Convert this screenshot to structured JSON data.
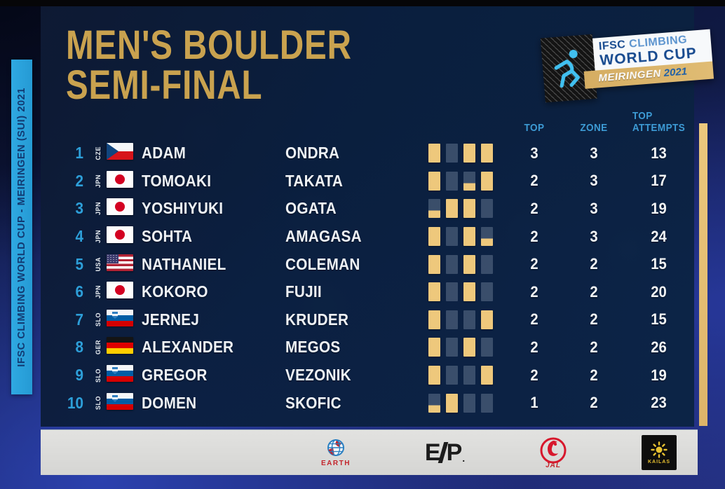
{
  "ribbon": {
    "text": "IFSC CLIMBING WORLD CUP - MEIRINGEN (SUI) 2021"
  },
  "title": {
    "line1": "MEN'S BOULDER",
    "line2": "SEMI-FINAL"
  },
  "event_badge": {
    "org": "IFSC",
    "discipline": "CLIMBING",
    "series": "WORLD CUP",
    "city": "MEIRINGEN",
    "year": "2021"
  },
  "table": {
    "headers": {
      "top": "TOP",
      "zone": "ZONE",
      "attempts_line1": "TOP",
      "attempts_line2": "ATTEMPTS"
    },
    "rows": [
      {
        "rank": "1",
        "country": "CZE",
        "flag": "cze",
        "first": "ADAM",
        "last": "ONDRA",
        "boulders": [
          "top",
          "none",
          "top",
          "top"
        ],
        "top": "3",
        "zone": "3",
        "attempts": "13"
      },
      {
        "rank": "2",
        "country": "JPN",
        "flag": "jpn",
        "first": "TOMOAKI",
        "last": "TAKATA",
        "boulders": [
          "top",
          "none",
          "zone",
          "top"
        ],
        "top": "2",
        "zone": "3",
        "attempts": "17"
      },
      {
        "rank": "3",
        "country": "JPN",
        "flag": "jpn",
        "first": "YOSHIYUKI",
        "last": "OGATA",
        "boulders": [
          "zone",
          "top",
          "top",
          "none"
        ],
        "top": "2",
        "zone": "3",
        "attempts": "19"
      },
      {
        "rank": "4",
        "country": "JPN",
        "flag": "jpn",
        "first": "SOHTA",
        "last": "AMAGASA",
        "boulders": [
          "top",
          "none",
          "top",
          "zone"
        ],
        "top": "2",
        "zone": "3",
        "attempts": "24"
      },
      {
        "rank": "5",
        "country": "USA",
        "flag": "usa",
        "first": "NATHANIEL",
        "last": "COLEMAN",
        "boulders": [
          "top",
          "none",
          "top",
          "none"
        ],
        "top": "2",
        "zone": "2",
        "attempts": "15"
      },
      {
        "rank": "6",
        "country": "JPN",
        "flag": "jpn",
        "first": "KOKORO",
        "last": "FUJII",
        "boulders": [
          "top",
          "none",
          "top",
          "none"
        ],
        "top": "2",
        "zone": "2",
        "attempts": "20"
      },
      {
        "rank": "7",
        "country": "SLO",
        "flag": "slo",
        "first": "JERNEJ",
        "last": "KRUDER",
        "boulders": [
          "top",
          "none",
          "none",
          "top"
        ],
        "top": "2",
        "zone": "2",
        "attempts": "15"
      },
      {
        "rank": "8",
        "country": "GER",
        "flag": "ger",
        "first": "ALEXANDER",
        "last": "MEGOS",
        "boulders": [
          "top",
          "none",
          "top",
          "none"
        ],
        "top": "2",
        "zone": "2",
        "attempts": "26"
      },
      {
        "rank": "9",
        "country": "SLO",
        "flag": "slo",
        "first": "GREGOR",
        "last": "VEZONIK",
        "boulders": [
          "top",
          "none",
          "none",
          "top"
        ],
        "top": "2",
        "zone": "2",
        "attempts": "19"
      },
      {
        "rank": "10",
        "country": "SLO",
        "flag": "slo",
        "first": "DOMEN",
        "last": "SKOFIC",
        "boulders": [
          "zone",
          "top",
          "none",
          "none"
        ],
        "top": "1",
        "zone": "2",
        "attempts": "23"
      }
    ]
  },
  "sponsors": {
    "earth": {
      "label": "EARTH"
    },
    "ep": {
      "letter1": "E",
      "letter2": "P"
    },
    "jal": {
      "label": "JAL"
    },
    "kailas": {
      "label": "KAILAS"
    }
  },
  "colors": {
    "title_gold": "#c9a24f",
    "ribbon_blue": "#2fa9e2",
    "header_blue": "#3d9bd5",
    "square_gold": "#eec87c",
    "square_empty": "#60738c",
    "panel_navy": "#0b1f3e"
  }
}
